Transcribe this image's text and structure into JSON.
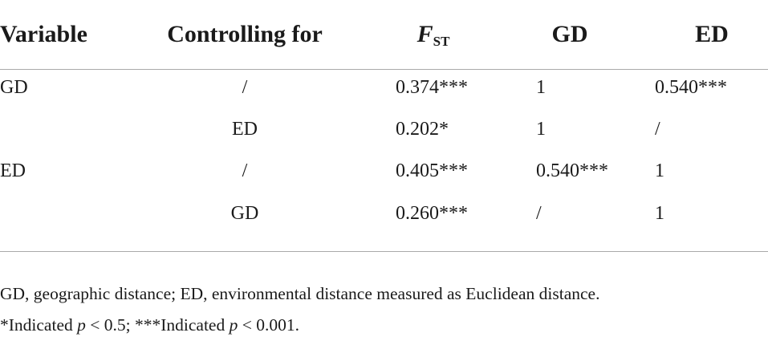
{
  "table": {
    "header": [
      "Variable",
      "Controlling for",
      {
        "main": "F",
        "sub": "ST"
      },
      "GD",
      "ED"
    ],
    "rows": [
      [
        "GD",
        "/",
        "0.374***",
        "1",
        "0.540***"
      ],
      [
        null,
        "ED",
        "0.202*",
        "1",
        "/"
      ],
      [
        "ED",
        "/",
        "0.405***",
        "0.540***",
        "1"
      ],
      [
        null,
        "GD",
        "0.260***",
        "/",
        "1"
      ]
    ]
  },
  "footnotes": [
    "GD, geographic distance; ED, environmental distance measured as Euclidean distance.",
    [
      "*Indicated ",
      "p",
      " < 0.5; ***Indicated ",
      "p",
      " < 0.001."
    ]
  ]
}
